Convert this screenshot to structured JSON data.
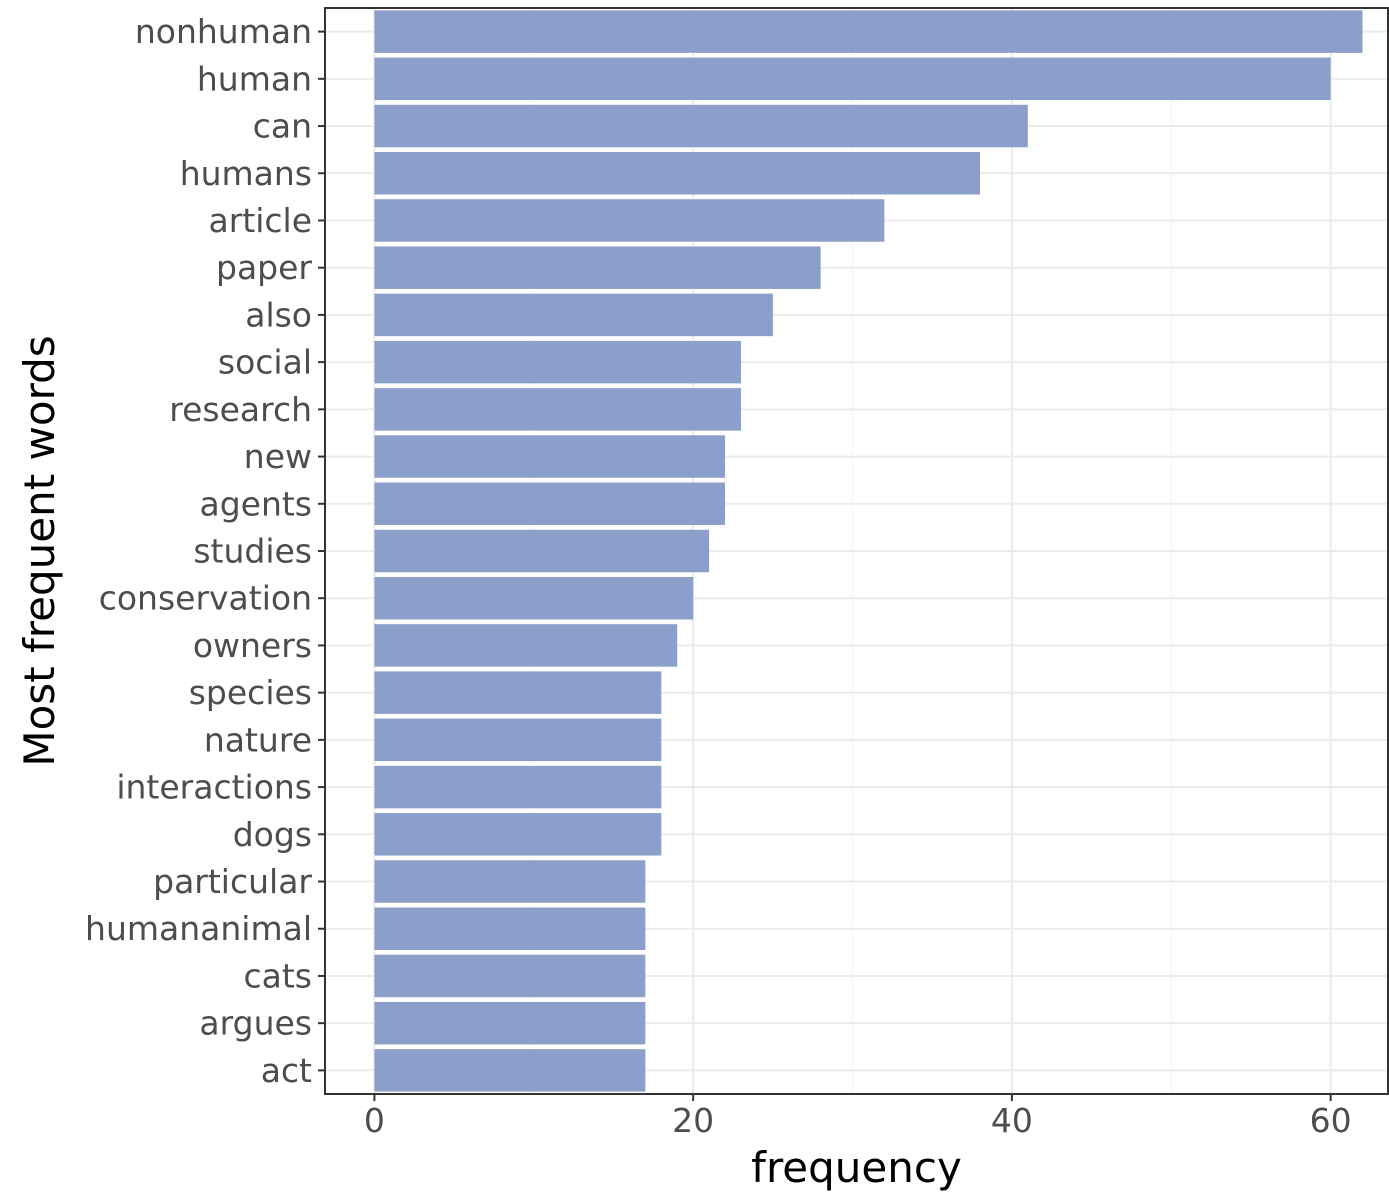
{
  "chart_data": {
    "type": "bar",
    "orientation": "horizontal",
    "categories": [
      "nonhuman",
      "human",
      "can",
      "humans",
      "article",
      "paper",
      "also",
      "social",
      "research",
      "new",
      "agents",
      "studies",
      "conservation",
      "owners",
      "species",
      "nature",
      "interactions",
      "dogs",
      "particular",
      "humananimal",
      "cats",
      "argues",
      "act"
    ],
    "values": [
      62,
      60,
      41,
      38,
      32,
      28,
      25,
      23,
      23,
      22,
      22,
      21,
      20,
      19,
      18,
      18,
      18,
      18,
      17,
      17,
      17,
      17,
      17
    ],
    "xlabel": "frequency",
    "ylabel": "Most frequent words",
    "xticks": [
      0,
      20,
      40,
      60
    ],
    "xlim": [
      -3.1,
      63.6
    ],
    "grid": true,
    "bar_color": "#8c9fcb"
  }
}
